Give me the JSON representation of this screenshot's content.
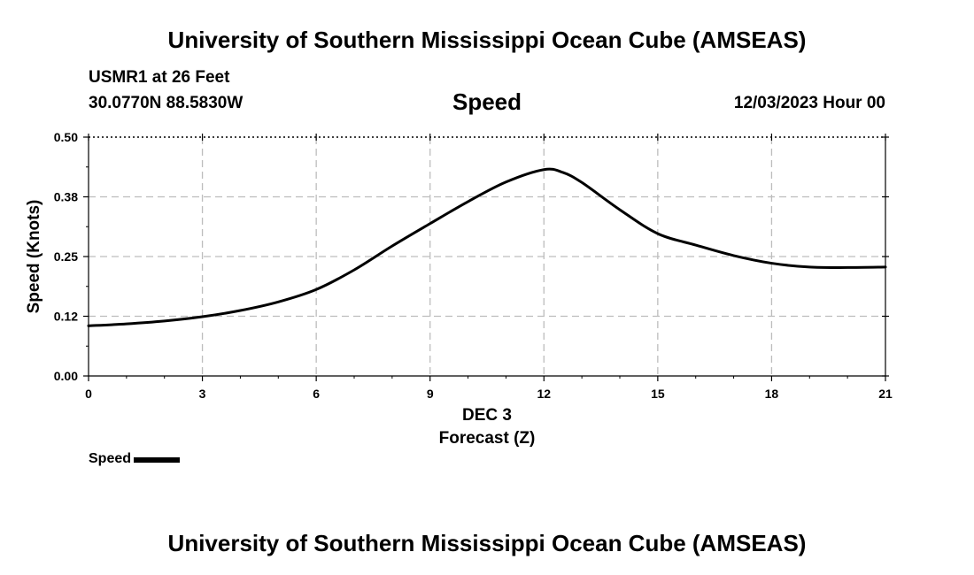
{
  "header": {
    "title": "University of Southern Mississippi Ocean Cube (AMSEAS)",
    "station": "USMR1 at 26 Feet",
    "coords": "30.0770N  88.5830W",
    "timestamp": "12/03/2023 Hour 00"
  },
  "footer": {
    "title": "University of Southern Mississippi Ocean Cube (AMSEAS)"
  },
  "legend": {
    "label": "Speed"
  },
  "chart_data": {
    "type": "line",
    "title": "Speed",
    "xlabel": "Forecast (Z)",
    "xlabel_date": "DEC 3",
    "ylabel": "Speed (Knots)",
    "xlim": [
      0,
      21
    ],
    "ylim": [
      0,
      0.5
    ],
    "x_ticks": [
      0,
      3,
      6,
      9,
      12,
      15,
      18,
      21
    ],
    "x_tick_labels": [
      "0",
      "3",
      "6",
      "9",
      "12",
      "15",
      "18",
      "21"
    ],
    "y_ticks": [
      0,
      0.125,
      0.25,
      0.375,
      0.5
    ],
    "y_tick_labels": [
      "0.00",
      "0.12",
      "0.25",
      "0.38",
      "0.50"
    ],
    "grid": true,
    "legend_position": "bottom-left",
    "series": [
      {
        "name": "Speed",
        "color": "#000000",
        "x": [
          0,
          1,
          2,
          3,
          4,
          5,
          6,
          7,
          8,
          9,
          10,
          11,
          12,
          12.5,
          13,
          14,
          15,
          16,
          17,
          18,
          19,
          20,
          21
        ],
        "values": [
          0.105,
          0.109,
          0.115,
          0.124,
          0.137,
          0.155,
          0.181,
          0.222,
          0.272,
          0.319,
          0.365,
          0.406,
          0.432,
          0.426,
          0.405,
          0.348,
          0.298,
          0.274,
          0.252,
          0.236,
          0.228,
          0.227,
          0.228
        ]
      }
    ]
  }
}
